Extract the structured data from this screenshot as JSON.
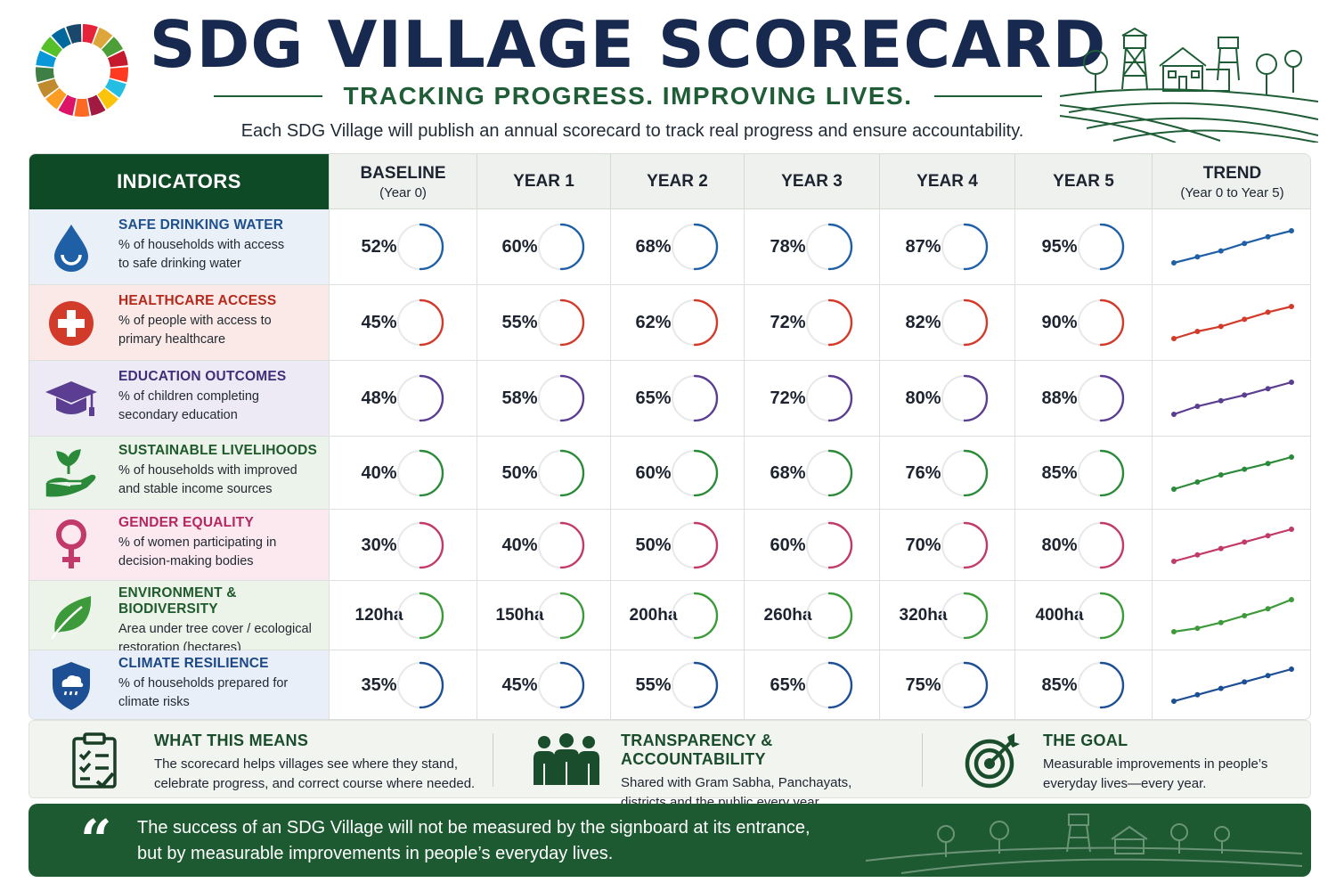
{
  "header": {
    "title": "SDG VILLAGE SCORECARD",
    "tagline": "TRACKING PROGRESS. IMPROVING LIVES.",
    "subtitle": "Each SDG Village will publish an annual scorecard to track real progress and ensure accountability."
  },
  "table": {
    "indicators_header": "INDICATORS",
    "columns": [
      {
        "label": "BASELINE",
        "sub": "(Year 0)"
      },
      {
        "label": "YEAR 1",
        "sub": ""
      },
      {
        "label": "YEAR 2",
        "sub": ""
      },
      {
        "label": "YEAR 3",
        "sub": ""
      },
      {
        "label": "YEAR 4",
        "sub": ""
      },
      {
        "label": "YEAR 5",
        "sub": ""
      }
    ],
    "trend_header": "TREND",
    "trend_sub": "(Year 0 to Year 5)"
  },
  "indicators": [
    {
      "key": "water",
      "icon": "water-drop-icon",
      "title": "SAFE DRINKING WATER",
      "desc_lines": [
        "% of households with access",
        "to safe drinking water"
      ],
      "values": [
        52,
        60,
        68,
        78,
        87,
        95
      ],
      "display": [
        "52%",
        "60%",
        "68%",
        "78%",
        "87%",
        "95%"
      ],
      "color": "#1f5fa6",
      "bg": "#e9f0f8",
      "title_color": "#1f4f8c"
    },
    {
      "key": "health",
      "icon": "medical-cross-icon",
      "title": "HEALTHCARE ACCESS",
      "desc_lines": [
        "% of people with access to",
        "primary healthcare"
      ],
      "values": [
        45,
        55,
        62,
        72,
        82,
        90
      ],
      "display": [
        "45%",
        "55%",
        "62%",
        "72%",
        "82%",
        "90%"
      ],
      "color": "#d23a2a",
      "bg": "#fbe9e7",
      "title_color": "#b5291c"
    },
    {
      "key": "education",
      "icon": "graduation-cap-icon",
      "title": "EDUCATION OUTCOMES",
      "desc_lines": [
        "% of children completing",
        "secondary education"
      ],
      "values": [
        48,
        58,
        65,
        72,
        80,
        88
      ],
      "display": [
        "48%",
        "58%",
        "65%",
        "72%",
        "80%",
        "88%"
      ],
      "color": "#5b3d91",
      "bg": "#eeeaf5",
      "title_color": "#3f2f7a"
    },
    {
      "key": "livelihood",
      "icon": "hand-sprout-icon",
      "title": "SUSTAINABLE LIVELIHOODS",
      "desc_lines": [
        "% of households with improved",
        "and stable income sources"
      ],
      "values": [
        40,
        50,
        60,
        68,
        76,
        85
      ],
      "display": [
        "40%",
        "50%",
        "60%",
        "68%",
        "76%",
        "85%"
      ],
      "color": "#2b8a3a",
      "bg": "#ebf3ea",
      "title_color": "#1e5a2c"
    },
    {
      "key": "gender",
      "icon": "female-symbol-icon",
      "title": "GENDER EQUALITY",
      "desc_lines": [
        "% of women participating in",
        "decision-making bodies"
      ],
      "values": [
        30,
        40,
        50,
        60,
        70,
        80
      ],
      "display": [
        "30%",
        "40%",
        "50%",
        "60%",
        "70%",
        "80%"
      ],
      "color": "#c13a6a",
      "bg": "#fbe9ef",
      "title_color": "#b3285e"
    },
    {
      "key": "environment",
      "icon": "leaf-icon",
      "title": "ENVIRONMENT & BIODIVERSITY",
      "desc_lines": [
        "Area under tree cover / ecological",
        "restoration (hectares)"
      ],
      "values": [
        120,
        150,
        200,
        260,
        320,
        400
      ],
      "display": [
        "120 ha",
        "150 ha",
        "200 ha",
        "260 ha",
        "320 ha",
        "400 ha"
      ],
      "color": "#3c9a3a",
      "bg": "#ecf4ea",
      "title_color": "#1f5a2c"
    },
    {
      "key": "climate",
      "icon": "shield-cloud-icon",
      "title": "CLIMATE RESILIENCE",
      "desc_lines": [
        "% of households prepared for",
        "climate risks"
      ],
      "values": [
        35,
        45,
        55,
        65,
        75,
        85
      ],
      "display": [
        "35%",
        "45%",
        "55%",
        "65%",
        "75%",
        "85%"
      ],
      "color": "#1d4f95",
      "bg": "#e8eff8",
      "title_color": "#1c4784"
    }
  ],
  "info": {
    "what": {
      "icon": "clipboard-checklist-icon",
      "title": "WHAT THIS MEANS",
      "lines": [
        "The scorecard helps villages see where they stand,",
        "celebrate progress, and correct course where needed."
      ]
    },
    "transparency": {
      "icon": "people-group-icon",
      "title": "TRANSPARENCY & ACCOUNTABILITY",
      "lines": [
        "Shared with Gram Sabha, Panchayats,",
        "districts and the public every year."
      ]
    },
    "goal": {
      "icon": "target-arrow-icon",
      "title": "THE GOAL",
      "lines": [
        "Measurable improvements in people’s",
        "everyday lives—every year."
      ]
    }
  },
  "quote": {
    "mark": "“",
    "lines": [
      "The success of an SDG Village will not be measured by the signboard at its entrance,",
      "but by measurable improvements in people’s everyday lives."
    ]
  },
  "palette": {
    "title": "#17294f",
    "accent_green": "#1f5d36",
    "dark_green": "#0f4a26",
    "quote_bg": "#1d5a31"
  }
}
